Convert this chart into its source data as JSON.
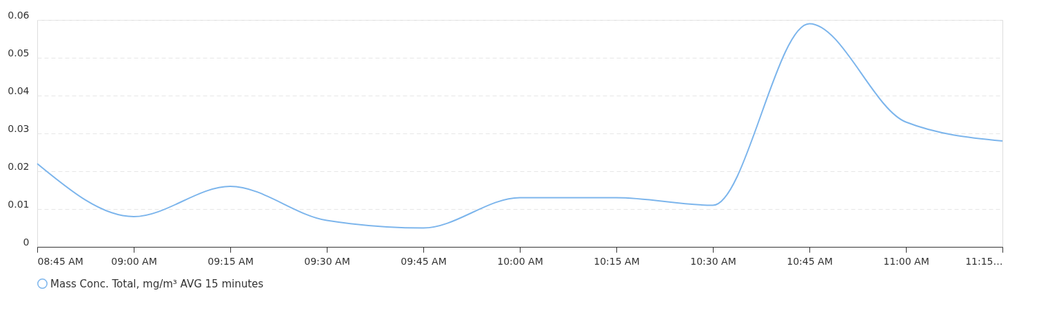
{
  "chart_data": {
    "type": "line",
    "x": [
      8.75,
      9,
      9.25,
      9.5,
      9.75,
      10,
      10.25,
      10.5,
      10.75,
      11,
      11.25
    ],
    "series": [
      {
        "name": "Mass Conc. Total, mg/m³ AVG 15 minutes",
        "color": "#7cb5ec",
        "values": [
          0.022,
          0.008,
          0.016,
          0.007,
          0.005,
          0.013,
          0.013,
          0.011,
          0.059,
          0.033,
          0.028
        ]
      }
    ],
    "xlim": [
      8.75,
      11.25
    ],
    "xticks": [
      {
        "value": 8.75,
        "label": "08:45 AM"
      },
      {
        "value": 9,
        "label": "09:00 AM"
      },
      {
        "value": 9.25,
        "label": "09:15 AM"
      },
      {
        "value": 9.5,
        "label": "09:30 AM"
      },
      {
        "value": 9.75,
        "label": "09:45 AM"
      },
      {
        "value": 10,
        "label": "10:00 AM"
      },
      {
        "value": 10.25,
        "label": "10:15 AM"
      },
      {
        "value": 10.5,
        "label": "10:30 AM"
      },
      {
        "value": 10.75,
        "label": "10:45 AM"
      },
      {
        "value": 11,
        "label": "11:00 AM"
      },
      {
        "value": 11.25,
        "label": "11:15…"
      }
    ],
    "ylim": [
      0,
      0.06
    ],
    "yticks": [
      0,
      0.01,
      0.02,
      0.03,
      0.04,
      0.05,
      0.06
    ],
    "grid": "y",
    "legend": "bottom",
    "marker": "none",
    "line_style": "solid"
  }
}
